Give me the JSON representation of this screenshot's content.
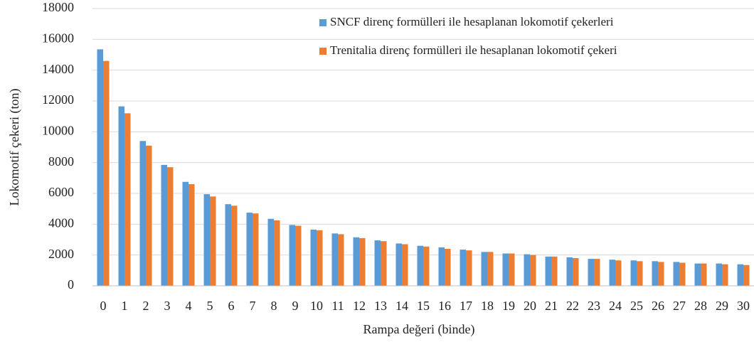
{
  "chart_data": {
    "type": "bar",
    "xlabel": "Rampa değeri (binde)",
    "ylabel": "Lokomotif çekeri  (ton)",
    "categories": [
      "0",
      "1",
      "2",
      "3",
      "4",
      "5",
      "6",
      "7",
      "8",
      "9",
      "10",
      "11",
      "12",
      "13",
      "14",
      "15",
      "16",
      "17",
      "18",
      "19",
      "20",
      "21",
      "22",
      "23",
      "24",
      "25",
      "26",
      "27",
      "28",
      "29",
      "30"
    ],
    "series": [
      {
        "name": "SNCF direnç formülleri ile hesaplanan lokomotif çekerleri",
        "color": "#5b9bd5",
        "values": [
          15350,
          11650,
          9400,
          7850,
          6750,
          5950,
          5300,
          4750,
          4350,
          3950,
          3650,
          3400,
          3150,
          2950,
          2750,
          2600,
          2500,
          2350,
          2200,
          2100,
          2050,
          1900,
          1850,
          1750,
          1700,
          1650,
          1600,
          1550,
          1450,
          1450,
          1400
        ]
      },
      {
        "name": "Trenitalia direnç formülleri ile hesaplanan lokomotif çekeri",
        "color": "#ed7d31",
        "values": [
          14600,
          11200,
          9100,
          7700,
          6600,
          5800,
          5200,
          4700,
          4250,
          3900,
          3600,
          3350,
          3100,
          2900,
          2700,
          2550,
          2400,
          2300,
          2200,
          2100,
          2000,
          1900,
          1800,
          1750,
          1650,
          1600,
          1550,
          1500,
          1450,
          1400,
          1350
        ]
      }
    ],
    "ylim": [
      0,
      18000
    ],
    "yticks": [
      0,
      2000,
      4000,
      6000,
      8000,
      10000,
      12000,
      14000,
      16000,
      18000
    ],
    "grid": true,
    "legend": "top-right"
  }
}
